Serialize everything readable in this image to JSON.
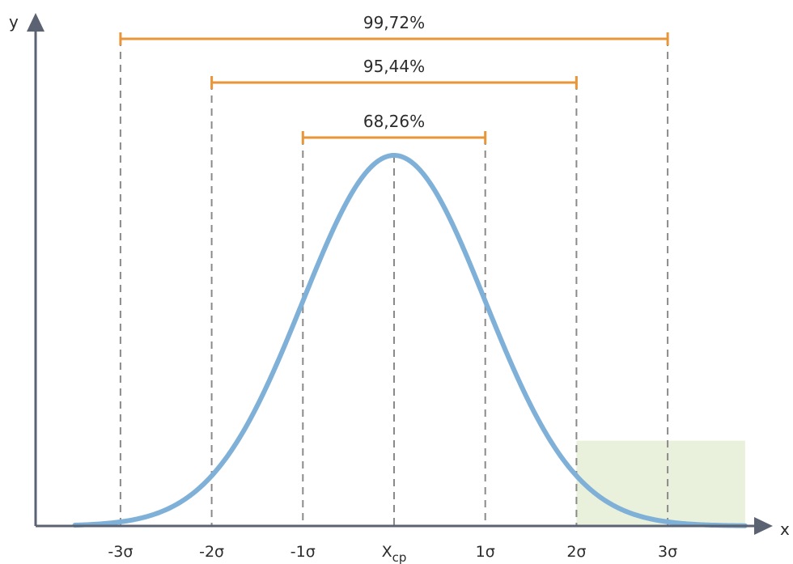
{
  "chart_data": {
    "type": "line",
    "title": "",
    "xlabel": "x",
    "ylabel": "y",
    "xlim": [
      -3.5,
      3.85
    ],
    "ylim": [
      0,
      1.0
    ],
    "grid": false,
    "ticks": [
      {
        "x": -3,
        "label": "-3σ"
      },
      {
        "x": -2,
        "label": "-2σ"
      },
      {
        "x": -1,
        "label": "-1σ"
      },
      {
        "x": 0,
        "label": "X",
        "sub": "cp"
      },
      {
        "x": 1,
        "label": "1σ"
      },
      {
        "x": 2,
        "label": "2σ"
      },
      {
        "x": 3,
        "label": "3σ"
      }
    ],
    "curve": {
      "type": "normal",
      "mean": 0,
      "sd": 1,
      "peak": 1.0
    },
    "intervals": [
      {
        "from": -1,
        "to": 1,
        "label": "68,26%"
      },
      {
        "from": -2,
        "to": 2,
        "label": "95,44%"
      },
      {
        "from": -3,
        "to": 3,
        "label": "99,72%"
      }
    ],
    "shaded_region": {
      "from": 2,
      "to": 3.85,
      "y_top": 0.23
    },
    "colors": {
      "curve": "#7fb0d8",
      "brackets": "#e8963a",
      "axes": "#5b6271",
      "guides": "#8a8a8a",
      "shade": "#e2ebcf"
    }
  }
}
